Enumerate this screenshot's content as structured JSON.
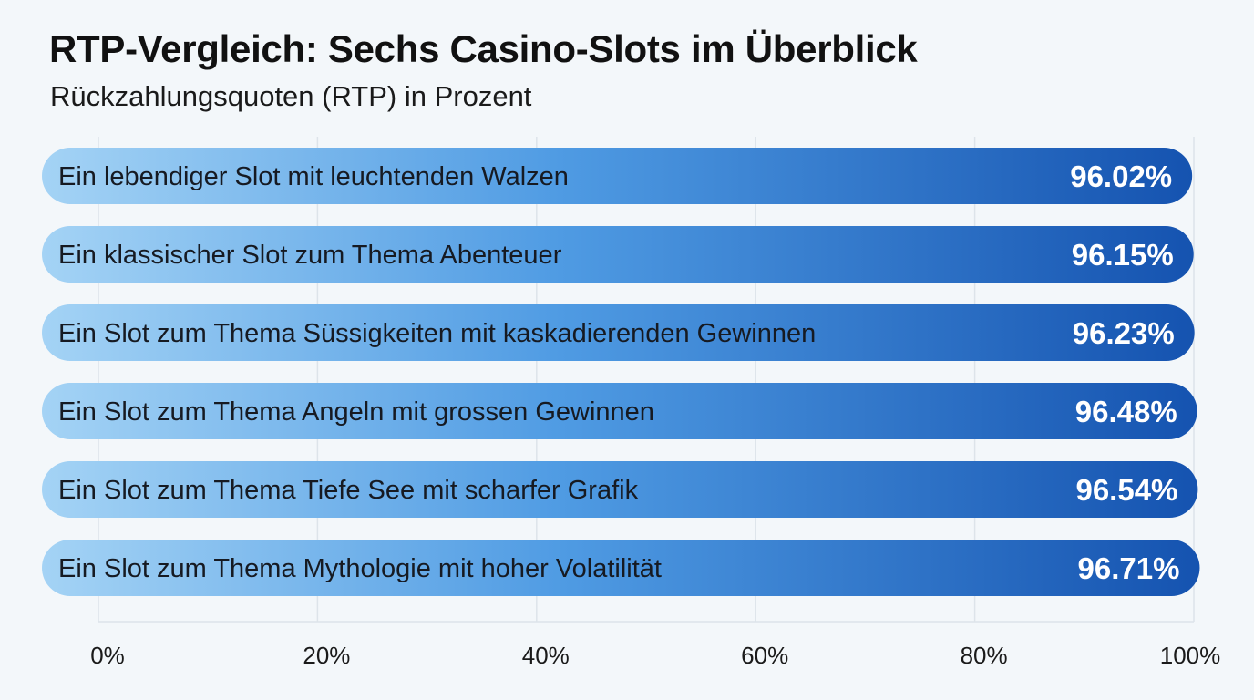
{
  "header": {
    "title": "RTP-Vergleich: Sechs Casino-Slots im Überblick",
    "subtitle": "Rückzahlungsquoten (RTP) in Prozent"
  },
  "chart_data": {
    "type": "bar",
    "orientation": "horizontal",
    "title": "RTP-Vergleich: Sechs Casino-Slots im Überblick",
    "subtitle": "Rückzahlungsquoten (RTP) in Prozent",
    "categories": [
      "Ein lebendiger Slot mit leuchtenden Walzen",
      "Ein klassischer Slot zum Thema Abenteuer",
      "Ein Slot zum Thema Süssigkeiten mit kaskadierenden Gewinnen",
      "Ein Slot zum Thema Angeln mit grossen Gewinnen",
      "Ein Slot zum Thema Tiefe See mit scharfer Grafik",
      "Ein Slot zum Thema Mythologie mit hoher Volatilität"
    ],
    "values": [
      96.02,
      96.15,
      96.23,
      96.48,
      96.54,
      96.71
    ],
    "value_labels": [
      "96.02%",
      "96.15%",
      "96.23%",
      "96.48%",
      "96.54%",
      "96.71%"
    ],
    "xlim": [
      0,
      100
    ],
    "x_ticks": [
      "0%",
      "20%",
      "40%",
      "60%",
      "80%",
      "100%"
    ],
    "grid": true,
    "colors": {
      "bar_start": "#a4d3f5",
      "bar_mid": "#4f9be3",
      "bar_end": "#1553b0",
      "grid": "#dde4ea"
    }
  }
}
